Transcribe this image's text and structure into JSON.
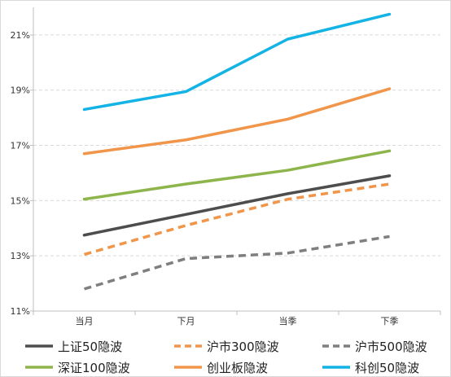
{
  "chart_data": {
    "type": "line",
    "title": "",
    "xlabel": "",
    "ylabel": "",
    "categories": [
      "当月",
      "下月",
      "当季",
      "下季"
    ],
    "ylim": [
      11,
      22
    ],
    "yticks": [
      11,
      13,
      15,
      17,
      19,
      21
    ],
    "ytick_labels": [
      "11%",
      "13%",
      "15%",
      "17%",
      "19%",
      "21%"
    ],
    "grid": true,
    "legend": "bottom",
    "series": [
      {
        "name": "上证50隐波",
        "values": [
          13.75,
          14.5,
          15.25,
          15.9
        ],
        "color": "#4d4d4d",
        "dash": false
      },
      {
        "name": "沪市300隐波",
        "values": [
          13.05,
          14.1,
          15.05,
          15.6
        ],
        "color": "#f0954a",
        "dash": true
      },
      {
        "name": "沪市500隐波",
        "values": [
          11.8,
          12.9,
          13.1,
          13.7
        ],
        "color": "#7f7f7f",
        "dash": true
      },
      {
        "name": "深证100隐波",
        "values": [
          15.05,
          15.6,
          16.1,
          16.8
        ],
        "color": "#8db54b",
        "dash": false
      },
      {
        "name": "创业板隐波",
        "values": [
          16.7,
          17.2,
          17.95,
          19.05
        ],
        "color": "#f0954a",
        "dash": false
      },
      {
        "name": "科创50隐波",
        "values": [
          18.3,
          18.95,
          20.85,
          21.75
        ],
        "color": "#14b3e6",
        "dash": false
      }
    ]
  }
}
